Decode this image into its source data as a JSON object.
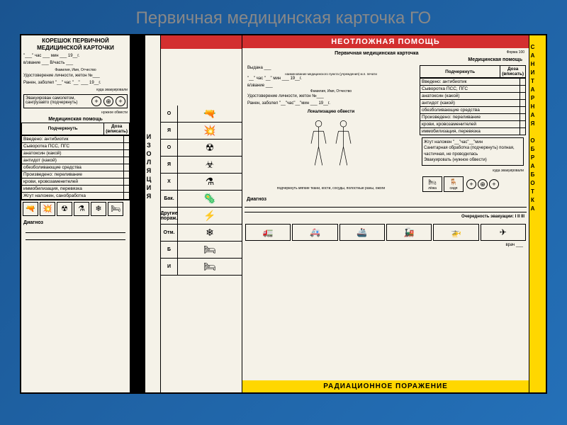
{
  "title": "Первичная медицинская карточка ГО",
  "stub": {
    "header": "КОРЕШОК ПЕРВИЧНОЙ МЕДИЦИНСКОЙ КАРТОЧКИ",
    "time": "\"___\" час ___ мин ___ 19__г.",
    "rank": "в/звание ___ В/часть ___",
    "fio": "Фамилия, Имя, Отчество",
    "id": "Удостоверение личности, жетон №___",
    "wounded": "Ранен, заболел \"__\" час \"__\" ___ 19__г.",
    "evac_label": "куда эвакуировали",
    "evac_text": "Эвакуирован самолетом, сангрузавто (подчеркнуть)",
    "circle_note": "нужное обвести",
    "med_help": "Медицинская помощь",
    "col1": "Подчеркнуть",
    "col2": "Доза (вписать)",
    "rows": [
      "Введено: антибиотик",
      "Сыворотка ПСС, ПГС",
      "анатоксин (какой)",
      "антидот (какой)",
      "обезболивающие средства",
      "Произведено: переливание",
      "крови, кровозаменителей",
      "иммобилизация, перевязка",
      "Жгут наложен, санобработка"
    ],
    "diag": "Диагноз"
  },
  "izol": "ИЗОЛЯЦИЯ",
  "dmg": {
    "items": [
      {
        "lbl": "О",
        "icon": "🔫"
      },
      {
        "lbl": "Я",
        "icon": "💥"
      },
      {
        "lbl": "О",
        "icon": "☢"
      },
      {
        "lbl": "Я",
        "icon": "☣"
      },
      {
        "lbl": "Х",
        "icon": "⚗"
      },
      {
        "lbl": "Бак.",
        "icon": "🦠"
      },
      {
        "lbl": "Другие пораж.",
        "icon": "⚡"
      },
      {
        "lbl": "Отм.",
        "icon": "❄"
      },
      {
        "lbl": "Б",
        "icon": "🛏"
      },
      {
        "lbl": "И",
        "icon": "🛏"
      }
    ]
  },
  "urgent": "НЕОТЛОЖНАЯ ПОМОЩЬ",
  "main": {
    "title": "Первичная медицинская карточка",
    "form": "Форма 100",
    "med": "Медицинская помощь",
    "issued": "Выдана ___",
    "issued_sub": "наименование медицинского пункта (учреждения) м.п. печати",
    "time": "\"__\" час \"__\" мин ___ 19__г.",
    "rank": "в/звание ___",
    "fio": "Фамилия, Имя, Отчество",
    "id": "Удостоверение личности, жетон №___",
    "wounded": "Ранен, заболел \"__\"час\"__\"мин ___ 19__г.",
    "col1": "Подчеркнуть",
    "col2": "Доза (вписать)",
    "rows": [
      "Введено: антибиотик",
      "Сыворотка ПСС, ПГС",
      "анатоксин (какой)",
      "антидот (какой)",
      "обезболивающие средства",
      "Произведено: переливание",
      "крови, кровозаменителей",
      "иммобилизация, перевязка"
    ],
    "local": "Локализацию обвести",
    "tissue": "подчеркнуть мягкие ткани, кости, сосуды, полостные раны, ожоги",
    "tourniquet": "Жгут наложен \"__\"час\"__\"мин",
    "sanit": "Санитарная обработка (подчеркнуть) полная, частичная, не проводилась",
    "evac2": "Эвакуировать (нужное обвести)",
    "evac_where": "куда эвакуировали",
    "pos_lying": "лёжа",
    "pos_sitting": "сидя",
    "diag": "Диагноз",
    "priority": "Очередность эвакуации: I II III",
    "doctor": "врач ___"
  },
  "sanit_strip": "САНИТАРНАЯ ОБРАБОТКА",
  "radiation": "РАДИАЦИОННОЕ ПОРАЖЕНИЕ",
  "colors": {
    "red": "#d32f2f",
    "yellow": "#ffd700",
    "cream": "#f5f2e8",
    "blue": "#2470b8"
  }
}
